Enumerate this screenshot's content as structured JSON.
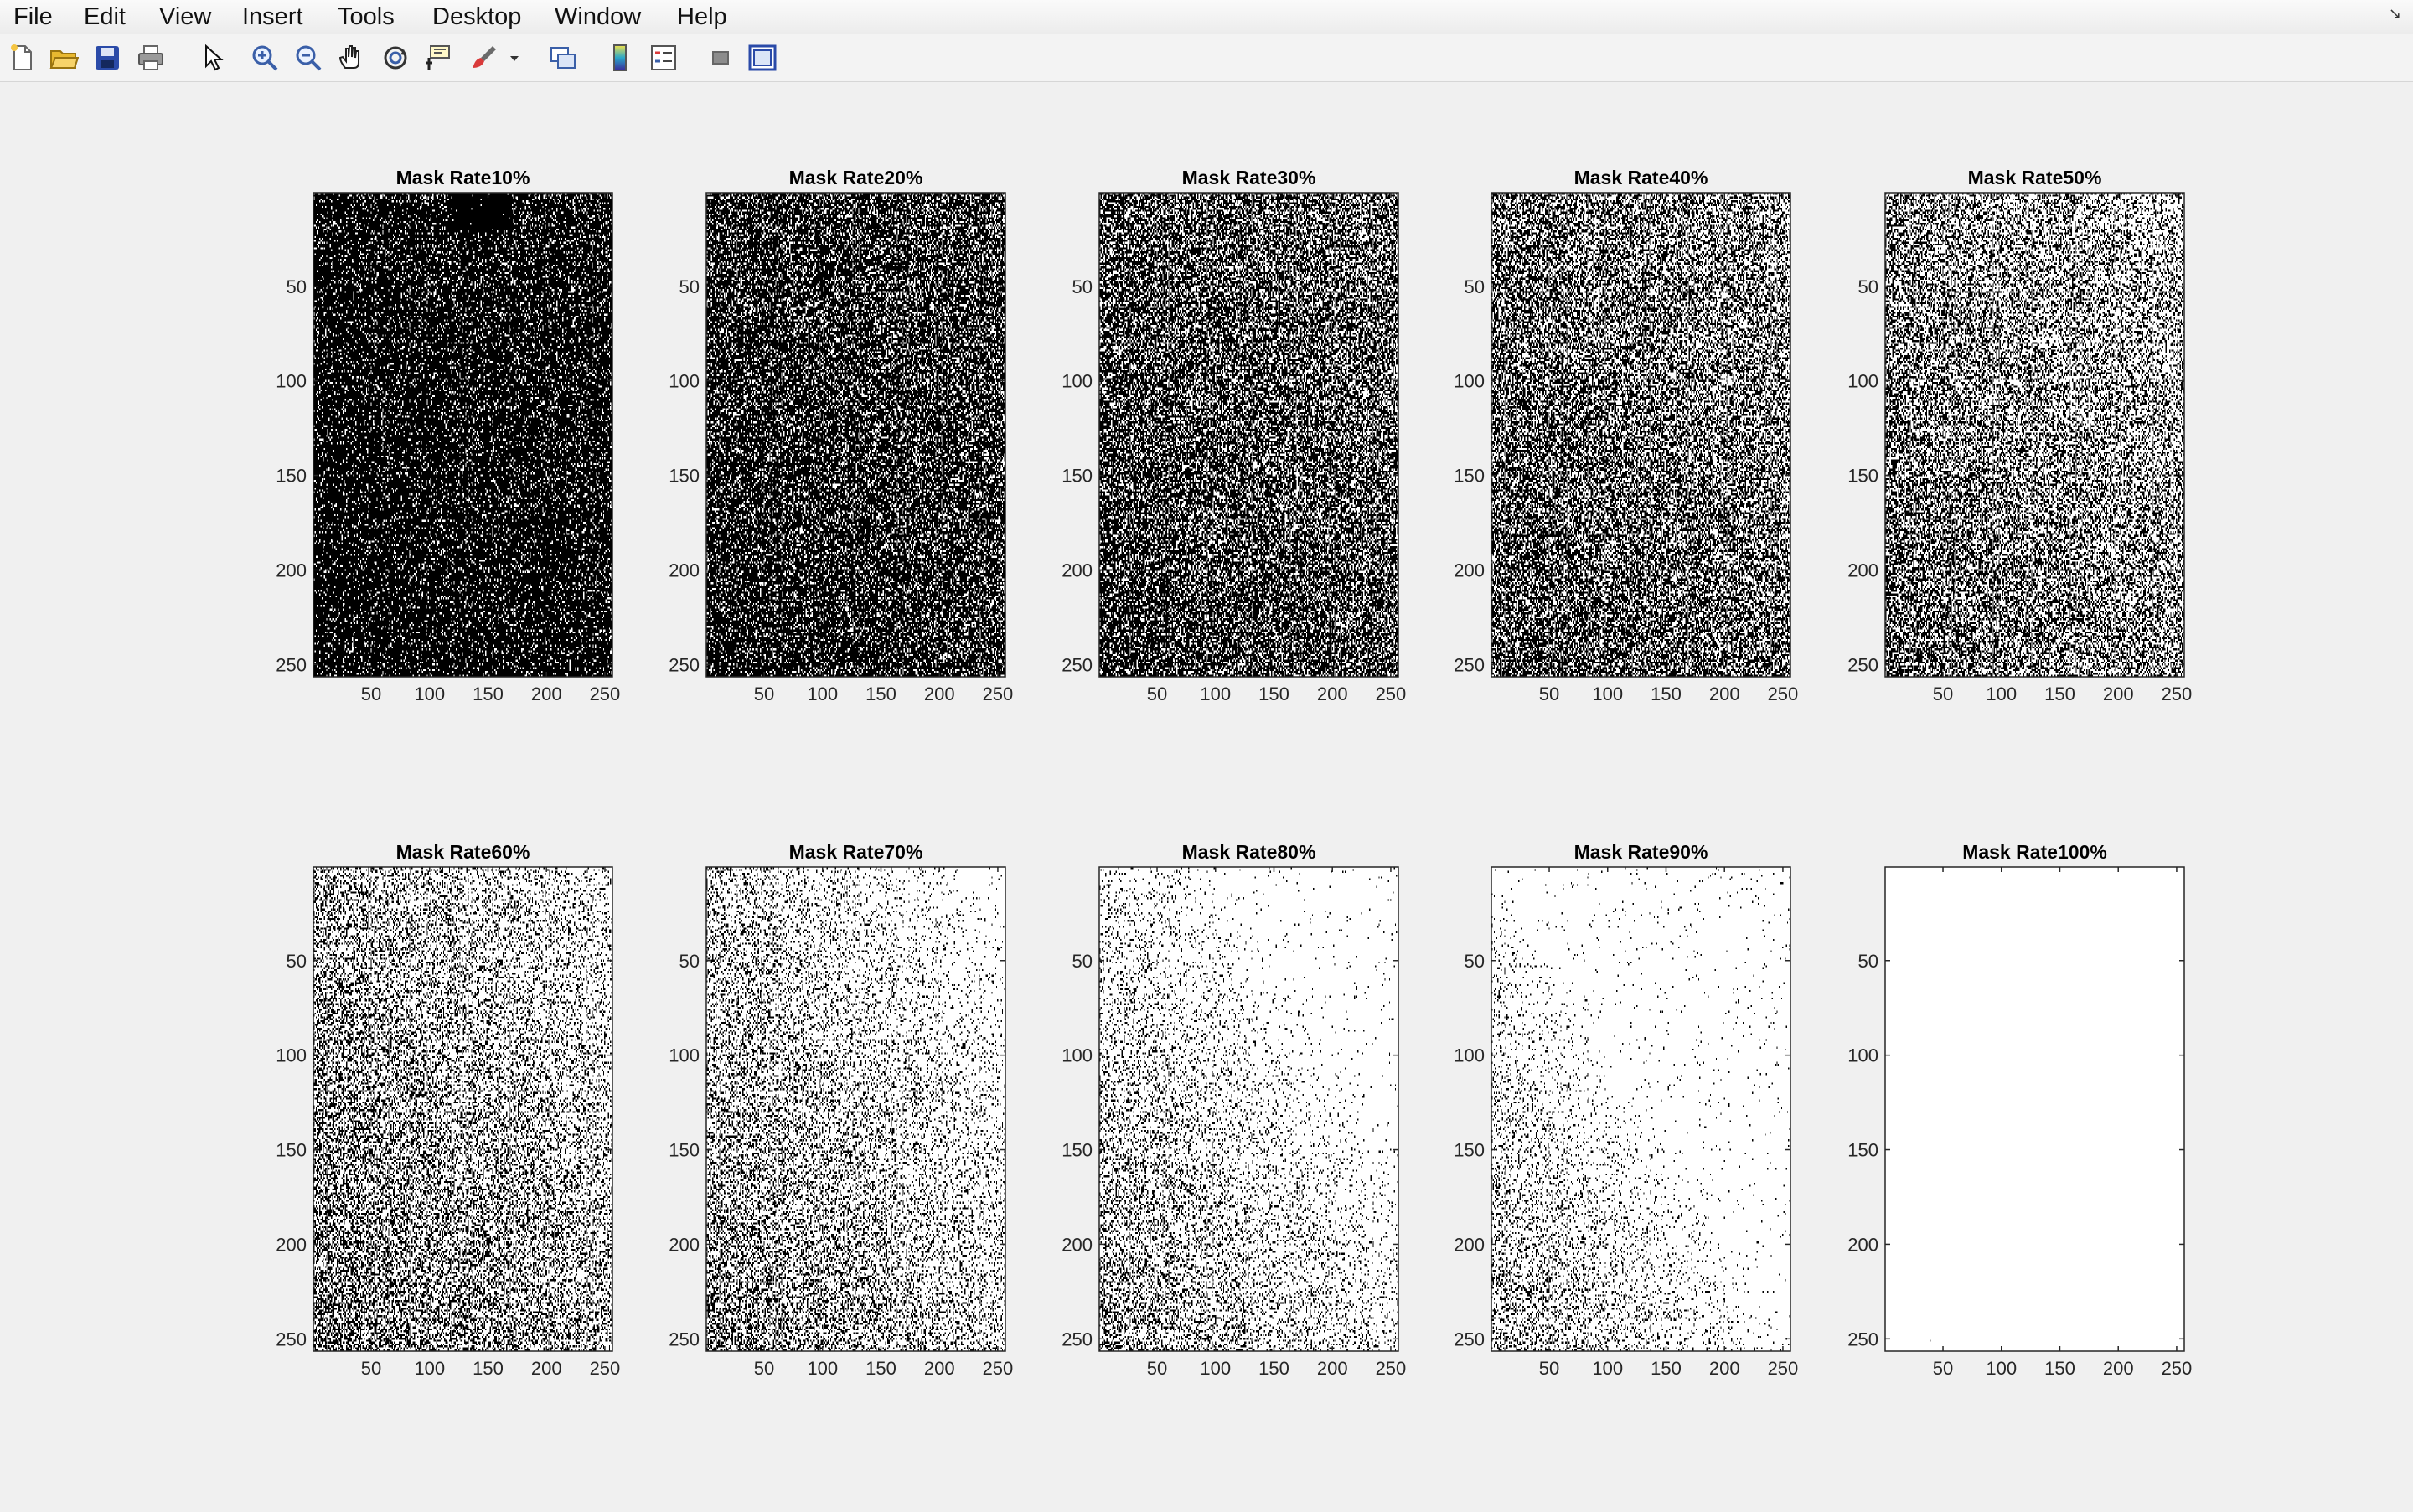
{
  "menu": {
    "items": [
      {
        "name": "menu-file",
        "label": "File"
      },
      {
        "name": "menu-edit",
        "label": "Edit"
      },
      {
        "name": "menu-view",
        "label": "View"
      },
      {
        "name": "menu-insert",
        "label": "Insert"
      },
      {
        "name": "menu-tools",
        "label": "Tools"
      },
      {
        "name": "menu-desktop",
        "label": "Desktop"
      },
      {
        "name": "menu-window",
        "label": "Window"
      },
      {
        "name": "menu-help",
        "label": "Help"
      }
    ]
  },
  "toolbar": {
    "icons": [
      "new-figure-icon",
      "open-file-icon",
      "save-icon",
      "print-icon",
      "edit-plot-pointer-icon",
      "zoom-in-icon",
      "zoom-out-icon",
      "pan-icon",
      "rotate-3d-icon",
      "data-cursor-icon",
      "brush-icon",
      "brush-dropdown-icon",
      "link-plot-icon",
      "insert-colorbar-icon",
      "insert-legend-icon",
      "hide-plot-tools-icon",
      "show-plot-tools-icon"
    ]
  },
  "chart_data": [
    {
      "type": "heatmap",
      "title": "Mask Rate10%",
      "mask_rate": 0.1,
      "colormap": "gray",
      "xlim": [
        0.5,
        256.5
      ],
      "ylim": [
        256.5,
        0.5
      ],
      "xticks": [
        50,
        100,
        150,
        200,
        250
      ],
      "yticks": [
        50,
        100,
        150,
        200,
        250
      ],
      "ytick_labels": [
        "50",
        "100",
        "150",
        "200",
        "250"
      ],
      "xtick_labels": [
        "50",
        "100",
        "150",
        "200",
        "250"
      ]
    },
    {
      "type": "heatmap",
      "title": "Mask Rate20%",
      "mask_rate": 0.2,
      "colormap": "gray",
      "xlim": [
        0.5,
        256.5
      ],
      "ylim": [
        256.5,
        0.5
      ],
      "xticks": [
        50,
        100,
        150,
        200,
        250
      ],
      "yticks": [
        50,
        100,
        150,
        200,
        250
      ],
      "ytick_labels": [
        "50",
        "100",
        "150",
        "200",
        "250"
      ],
      "xtick_labels": [
        "50",
        "100",
        "150",
        "200",
        "250"
      ]
    },
    {
      "type": "heatmap",
      "title": "Mask Rate30%",
      "mask_rate": 0.3,
      "colormap": "gray",
      "xlim": [
        0.5,
        256.5
      ],
      "ylim": [
        256.5,
        0.5
      ],
      "xticks": [
        50,
        100,
        150,
        200,
        250
      ],
      "yticks": [
        50,
        100,
        150,
        200,
        250
      ],
      "ytick_labels": [
        "50",
        "100",
        "150",
        "200",
        "250"
      ],
      "xtick_labels": [
        "50",
        "100",
        "150",
        "200",
        "250"
      ]
    },
    {
      "type": "heatmap",
      "title": "Mask Rate40%",
      "mask_rate": 0.4,
      "colormap": "gray",
      "xlim": [
        0.5,
        256.5
      ],
      "ylim": [
        256.5,
        0.5
      ],
      "xticks": [
        50,
        100,
        150,
        200,
        250
      ],
      "yticks": [
        50,
        100,
        150,
        200,
        250
      ],
      "ytick_labels": [
        "50",
        "100",
        "150",
        "200",
        "250"
      ],
      "xtick_labels": [
        "50",
        "100",
        "150",
        "200",
        "250"
      ]
    },
    {
      "type": "heatmap",
      "title": "Mask Rate50%",
      "mask_rate": 0.5,
      "colormap": "gray",
      "xlim": [
        0.5,
        256.5
      ],
      "ylim": [
        256.5,
        0.5
      ],
      "xticks": [
        50,
        100,
        150,
        200,
        250
      ],
      "yticks": [
        50,
        100,
        150,
        200,
        250
      ],
      "ytick_labels": [
        "50",
        "100",
        "150",
        "200",
        "250"
      ],
      "xtick_labels": [
        "50",
        "100",
        "150",
        "200",
        "250"
      ]
    },
    {
      "type": "heatmap",
      "title": "Mask Rate60%",
      "mask_rate": 0.6,
      "colormap": "gray",
      "xlim": [
        0.5,
        256.5
      ],
      "ylim": [
        256.5,
        0.5
      ],
      "xticks": [
        50,
        100,
        150,
        200,
        250
      ],
      "yticks": [
        50,
        100,
        150,
        200,
        250
      ],
      "ytick_labels": [
        "50",
        "100",
        "150",
        "200",
        "250"
      ],
      "xtick_labels": [
        "50",
        "100",
        "150",
        "200",
        "250"
      ]
    },
    {
      "type": "heatmap",
      "title": "Mask Rate70%",
      "mask_rate": 0.7,
      "colormap": "gray",
      "xlim": [
        0.5,
        256.5
      ],
      "ylim": [
        256.5,
        0.5
      ],
      "xticks": [
        50,
        100,
        150,
        200,
        250
      ],
      "yticks": [
        50,
        100,
        150,
        200,
        250
      ],
      "ytick_labels": [
        "50",
        "100",
        "150",
        "200",
        "250"
      ],
      "xtick_labels": [
        "50",
        "100",
        "150",
        "200",
        "250"
      ]
    },
    {
      "type": "heatmap",
      "title": "Mask Rate80%",
      "mask_rate": 0.8,
      "colormap": "gray",
      "xlim": [
        0.5,
        256.5
      ],
      "ylim": [
        256.5,
        0.5
      ],
      "xticks": [
        50,
        100,
        150,
        200,
        250
      ],
      "yticks": [
        50,
        100,
        150,
        200,
        250
      ],
      "ytick_labels": [
        "50",
        "100",
        "150",
        "200",
        "250"
      ],
      "xtick_labels": [
        "50",
        "100",
        "150",
        "200",
        "250"
      ]
    },
    {
      "type": "heatmap",
      "title": "Mask Rate90%",
      "mask_rate": 0.9,
      "colormap": "gray",
      "xlim": [
        0.5,
        256.5
      ],
      "ylim": [
        256.5,
        0.5
      ],
      "xticks": [
        50,
        100,
        150,
        200,
        250
      ],
      "yticks": [
        50,
        100,
        150,
        200,
        250
      ],
      "ytick_labels": [
        "50",
        "100",
        "150",
        "200",
        "250"
      ],
      "xtick_labels": [
        "50",
        "100",
        "150",
        "200",
        "250"
      ]
    },
    {
      "type": "heatmap",
      "title": "Mask Rate100%",
      "mask_rate": 1.0,
      "colormap": "gray",
      "xlim": [
        0.5,
        256.5
      ],
      "ylim": [
        256.5,
        0.5
      ],
      "xticks": [
        50,
        100,
        150,
        200,
        250
      ],
      "yticks": [
        50,
        100,
        150,
        200,
        250
      ],
      "ytick_labels": [
        "50",
        "100",
        "150",
        "200",
        "250"
      ],
      "xtick_labels": [
        "50",
        "100",
        "150",
        "200",
        "250"
      ]
    }
  ]
}
